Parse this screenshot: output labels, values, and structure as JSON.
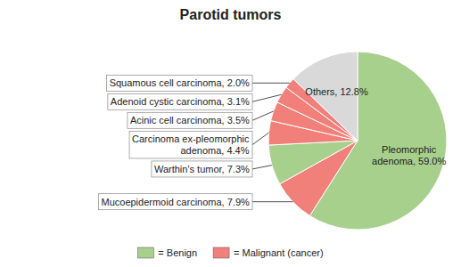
{
  "chart_data": {
    "type": "pie",
    "title": "Parotid tumors",
    "categories": [
      "Pleomorphic\nadenoma, 59.0%",
      "Mucoepidermoid carcinoma, 7.9%",
      "Warthin's tumor, 7.3%",
      "Carcinoma ex-pleomorphic\nadenoma, 4.4%",
      "Acinic cell carcinoma, 3.5%",
      "Adenoid cystic carcinoma, 3.1%",
      "Squamous cell carcinoma, 2.0%",
      "Others, 12.8%"
    ],
    "values": [
      59.0,
      7.9,
      7.3,
      4.4,
      3.5,
      3.1,
      2.0,
      12.8
    ],
    "colors": [
      "#a8d08d",
      "#f1807a",
      "#a8d08d",
      "#f1807a",
      "#f1807a",
      "#f1807a",
      "#f1807a",
      "#d9d9d9"
    ],
    "legend": "bottom",
    "legend_entries": [
      {
        "name": "= Benign",
        "color": "#a8d08d"
      },
      {
        "name": "= Malignant (cancer)",
        "color": "#f1807a"
      }
    ]
  }
}
